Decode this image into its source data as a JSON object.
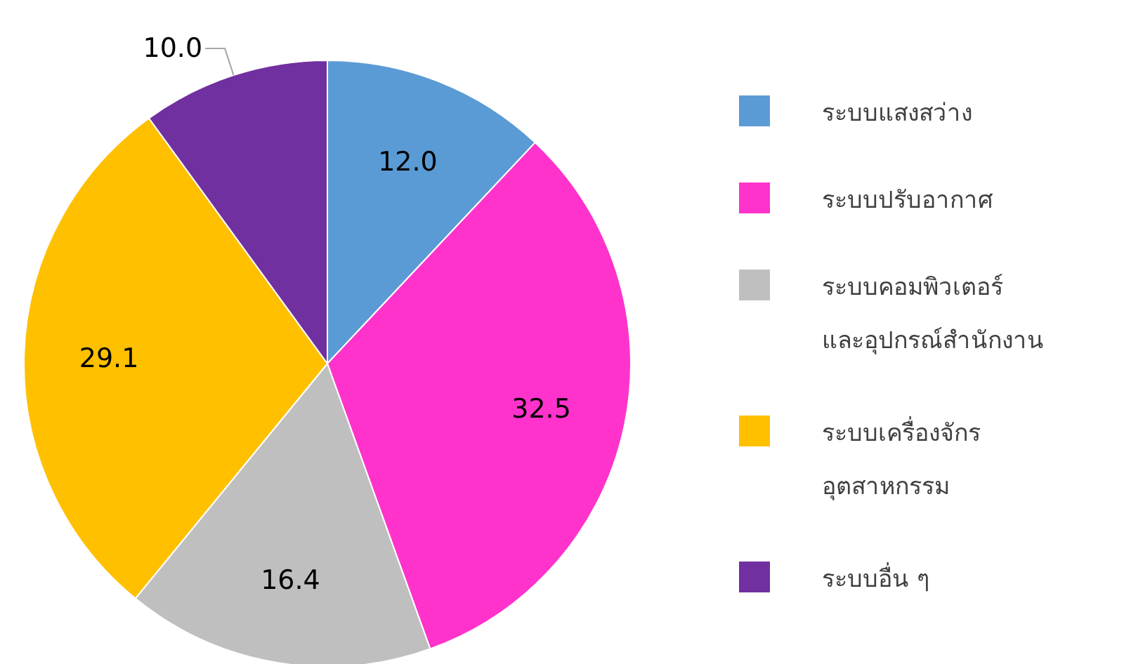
{
  "chart_data": {
    "type": "pie",
    "categories": [
      "ระบบแสงสว่าง",
      "ระบบปรับอากาศ",
      "ระบบคอมพิวเตอร์\nและอุปกรณ์สำนักงาน",
      "ระบบเครื่องจักร\nอุตสาหกรรม",
      "ระบบอื่น ๆ"
    ],
    "values": [
      12.0,
      32.5,
      16.4,
      29.1,
      10.0
    ],
    "colors": [
      "#5b9bd5",
      "#ff33cc",
      "#bfbfbf",
      "#ffc000",
      "#7030a0"
    ],
    "value_labels": [
      "12.0",
      "32.5",
      "16.4",
      "29.1",
      "10.0"
    ],
    "legend": "right"
  }
}
